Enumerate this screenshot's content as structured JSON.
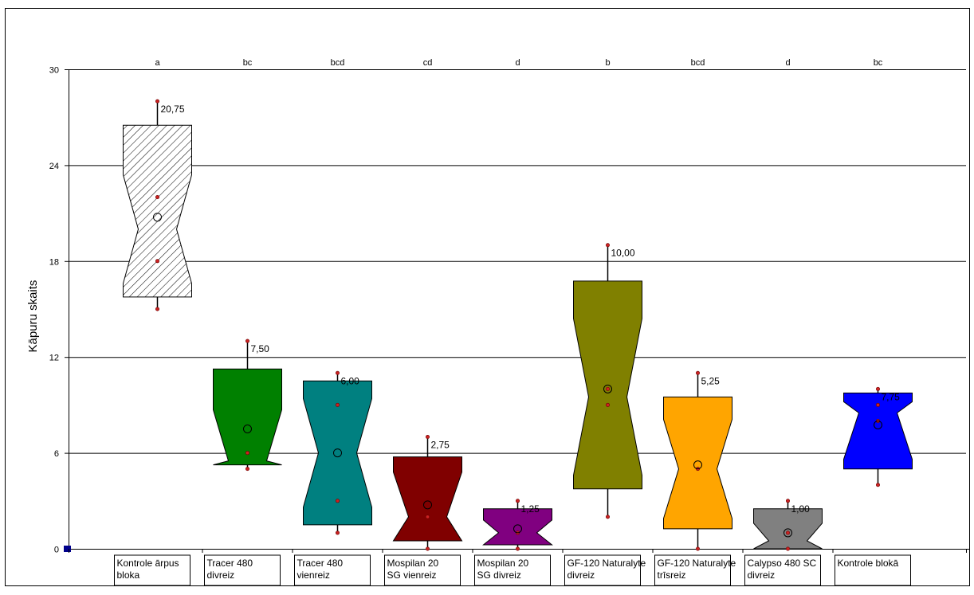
{
  "chart_data": {
    "type": "box",
    "ylabel": "Kāpuru skaits",
    "xlabel": "",
    "title": "",
    "ylim": [
      0,
      30
    ],
    "yticks": [
      0,
      6,
      12,
      18,
      24,
      30
    ],
    "grid": true,
    "notched": true,
    "categories": [
      {
        "lines": [
          "Kontrole ārpus",
          "bloka"
        ],
        "letter": "a",
        "fill": "hatch",
        "q1": 15.75,
        "median": 20,
        "q3": 26.5,
        "notch_low": 16.6,
        "notch_high": 23.4,
        "min": 15,
        "max": 28,
        "mean": 20.75,
        "mean_label": "20,75",
        "points": [
          28,
          22,
          18,
          15
        ]
      },
      {
        "lines": [
          "Tracer 480",
          "divreiz"
        ],
        "letter": "bc",
        "fill": "#008000",
        "q1": 5.25,
        "median": 5.5,
        "q3": 11.25,
        "notch_low": 5.25,
        "notch_high": 8.7,
        "min": 5,
        "max": 13,
        "mean": 7.5,
        "mean_label": "7,50",
        "points": [
          13,
          6,
          5
        ]
      },
      {
        "lines": [
          "Tracer 480",
          "vienreiz"
        ],
        "letter": "bcd",
        "fill": "#008080",
        "q1": 1.5,
        "median": 6,
        "q3": 10.5,
        "notch_low": 2.6,
        "notch_high": 9.4,
        "min": 1,
        "max": 11,
        "mean": 6,
        "mean_label": "6,00",
        "points": [
          11,
          9,
          3,
          1
        ]
      },
      {
        "lines": [
          "Mospilan 20",
          "SG vienreiz"
        ],
        "letter": "cd",
        "fill": "#800000",
        "q1": 0.5,
        "median": 2,
        "q3": 5.75,
        "notch_low": 0.5,
        "notch_high": 4.8,
        "min": 0,
        "max": 7,
        "mean": 2.75,
        "mean_label": "2,75",
        "points": [
          7,
          2,
          0
        ]
      },
      {
        "lines": [
          "Mospilan 20",
          "SG divreiz"
        ],
        "letter": "d",
        "fill": "#800080",
        "q1": 0.25,
        "median": 1,
        "q3": 2.5,
        "notch_low": 0.25,
        "notch_high": 1.8,
        "min": 0,
        "max": 3,
        "mean": 1.25,
        "mean_label": "1,25",
        "points": [
          3,
          1,
          0
        ]
      },
      {
        "lines": [
          "GF-120 Naturalyte",
          "divreiz"
        ],
        "letter": "b",
        "fill": "#808000",
        "q1": 3.75,
        "median": 9.5,
        "q3": 16.75,
        "notch_low": 4.6,
        "notch_high": 14.4,
        "min": 2,
        "max": 19,
        "mean": 10,
        "mean_label": "10,00",
        "points": [
          19,
          10,
          9,
          2
        ]
      },
      {
        "lines": [
          "GF-120 Naturalyte",
          "trīsreiz"
        ],
        "letter": "bcd",
        "fill": "#FFA500",
        "q1": 1.25,
        "median": 5,
        "q3": 9.5,
        "notch_low": 1.9,
        "notch_high": 8.1,
        "min": 0,
        "max": 11,
        "mean": 5.25,
        "mean_label": "5,25",
        "points": [
          11,
          5,
          0
        ]
      },
      {
        "lines": [
          "Calypso 480 SC",
          "divreiz"
        ],
        "letter": "d",
        "fill": "#808080",
        "q1": 0,
        "median": 0.5,
        "q3": 2.5,
        "notch_low": 0,
        "notch_high": 1.6,
        "min": 0,
        "max": 3,
        "mean": 1,
        "mean_label": "1,00",
        "points": [
          3,
          1,
          0
        ]
      },
      {
        "lines": [
          "Kontrole blokā"
        ],
        "letter": "bc",
        "fill": "#0000FF",
        "q1": 5,
        "median": 8.5,
        "q3": 9.75,
        "notch_low": 5.6,
        "notch_high": 9.2,
        "min": 4,
        "max": 10,
        "mean": 7.75,
        "mean_label": "7,75",
        "points": [
          10,
          9,
          8,
          4
        ]
      }
    ]
  }
}
